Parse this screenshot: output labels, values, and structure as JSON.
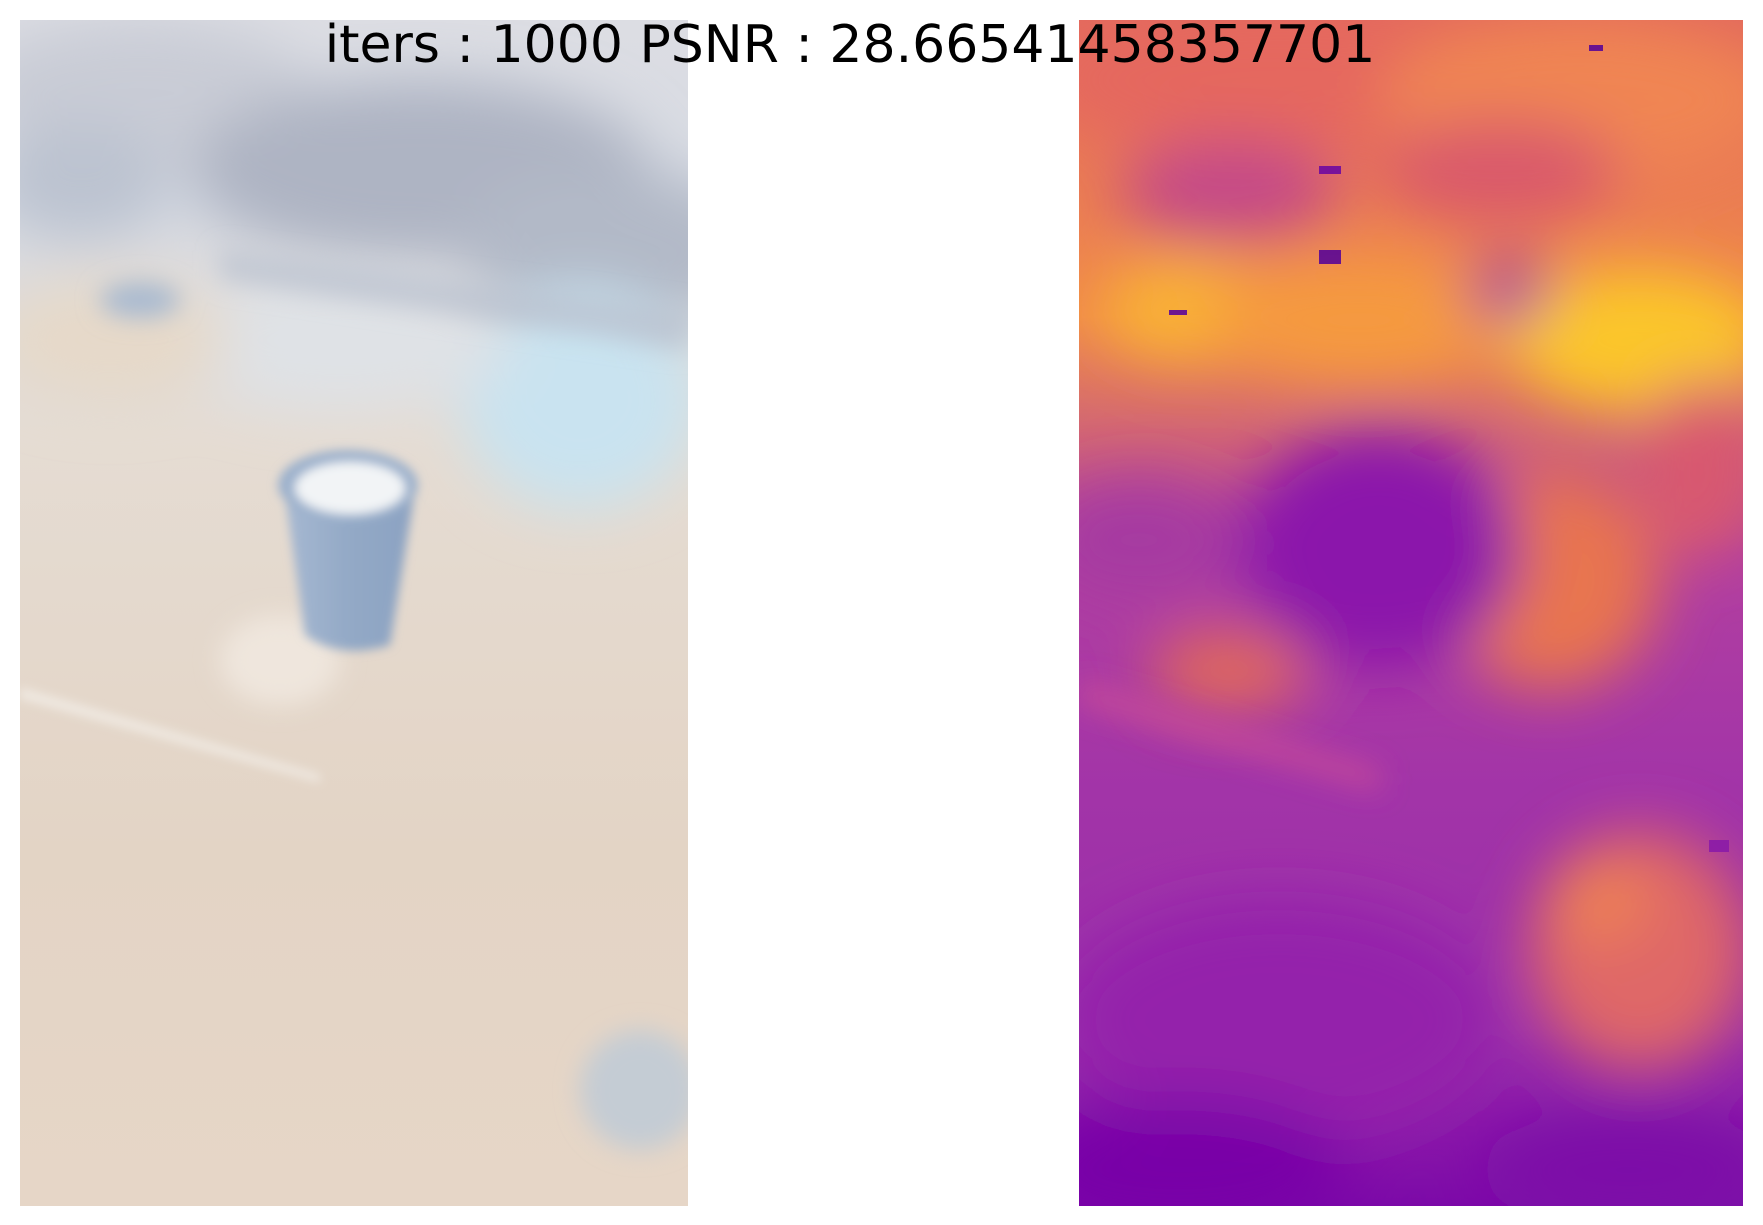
{
  "figure": {
    "title": "iters : 1000 PSNR : 28.66541458357701"
  },
  "panels": [
    {
      "name": "rendered-rgb",
      "colormap": "rgb"
    },
    {
      "name": "depth-map",
      "colormap": "plasma"
    }
  ],
  "colors": {
    "rgb_sky": "#d8dbe3",
    "rgb_floor": "#e4d5c6",
    "rgb_cup": "#9fb3cc",
    "plasma_low": "#7c09a8",
    "plasma_mid": "#b53d9b",
    "plasma_high": "#fbc629"
  }
}
